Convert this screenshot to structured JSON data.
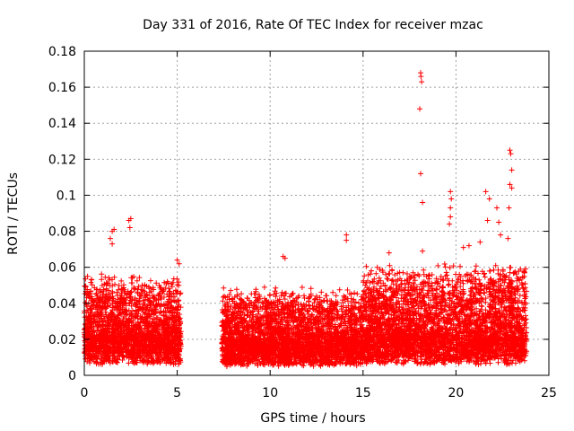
{
  "chart_data": {
    "type": "scatter",
    "title": "Day 331 of 2016, Rate Of TEC Index for receiver mzac",
    "xlabel": "GPS time / hours",
    "ylabel": "ROTI / TECUs",
    "xlim": [
      0,
      25
    ],
    "ylim": [
      0,
      0.18
    ],
    "grid": true,
    "marker": "+",
    "color": "#ff0000",
    "x_ticks": [
      0,
      5,
      10,
      15,
      20,
      25
    ],
    "x_tick_labels": [
      "0",
      "5",
      "10",
      "15",
      "20",
      "25"
    ],
    "y_ticks": [
      0,
      0.02,
      0.04,
      0.06,
      0.08,
      0.1,
      0.12,
      0.14,
      0.16,
      0.18
    ],
    "y_tick_labels": [
      "0",
      "0.02",
      "0.04",
      "0.06",
      "0.08",
      "0.1",
      "0.12",
      "0.14",
      "0.16",
      "0.18"
    ],
    "series": [
      {
        "name": "ROTI",
        "segments": [
          {
            "x_start": 0.0,
            "x_end": 5.2,
            "base": 0.017,
            "spread": 0.022,
            "cap": 0.064
          },
          {
            "x_start": 7.4,
            "x_end": 15.0,
            "base": 0.014,
            "spread": 0.02,
            "cap": 0.062
          },
          {
            "x_start": 15.0,
            "x_end": 23.8,
            "base": 0.017,
            "spread": 0.026,
            "cap": 0.072
          }
        ],
        "outliers": [
          {
            "x": 1.4,
            "y": 0.076
          },
          {
            "x": 1.5,
            "y": 0.08
          },
          {
            "x": 1.6,
            "y": 0.081
          },
          {
            "x": 1.5,
            "y": 0.073
          },
          {
            "x": 2.4,
            "y": 0.086
          },
          {
            "x": 2.5,
            "y": 0.087
          },
          {
            "x": 2.45,
            "y": 0.082
          },
          {
            "x": 14.1,
            "y": 0.078
          },
          {
            "x": 14.1,
            "y": 0.075
          },
          {
            "x": 18.1,
            "y": 0.168
          },
          {
            "x": 18.12,
            "y": 0.166
          },
          {
            "x": 18.15,
            "y": 0.163
          },
          {
            "x": 18.05,
            "y": 0.148
          },
          {
            "x": 18.1,
            "y": 0.112
          },
          {
            "x": 18.2,
            "y": 0.096
          },
          {
            "x": 18.2,
            "y": 0.069
          },
          {
            "x": 19.7,
            "y": 0.102
          },
          {
            "x": 19.75,
            "y": 0.098
          },
          {
            "x": 19.7,
            "y": 0.093
          },
          {
            "x": 19.7,
            "y": 0.088
          },
          {
            "x": 19.65,
            "y": 0.084
          },
          {
            "x": 21.6,
            "y": 0.102
          },
          {
            "x": 21.8,
            "y": 0.098
          },
          {
            "x": 21.7,
            "y": 0.086
          },
          {
            "x": 22.2,
            "y": 0.093
          },
          {
            "x": 22.3,
            "y": 0.085
          },
          {
            "x": 22.4,
            "y": 0.078
          },
          {
            "x": 22.9,
            "y": 0.125
          },
          {
            "x": 22.95,
            "y": 0.123
          },
          {
            "x": 23.0,
            "y": 0.114
          },
          {
            "x": 22.9,
            "y": 0.106
          },
          {
            "x": 23.0,
            "y": 0.104
          },
          {
            "x": 22.85,
            "y": 0.093
          },
          {
            "x": 22.8,
            "y": 0.076
          },
          {
            "x": 20.7,
            "y": 0.072
          },
          {
            "x": 20.4,
            "y": 0.071
          },
          {
            "x": 21.3,
            "y": 0.074
          },
          {
            "x": 16.4,
            "y": 0.068
          },
          {
            "x": 10.7,
            "y": 0.066
          },
          {
            "x": 10.8,
            "y": 0.065
          },
          {
            "x": 5.0,
            "y": 0.064
          },
          {
            "x": 5.1,
            "y": 0.062
          }
        ]
      }
    ]
  }
}
